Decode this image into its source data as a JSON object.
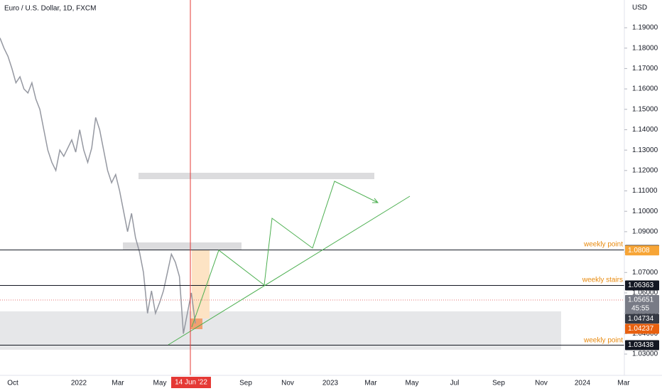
{
  "chart_data": {
    "type": "line",
    "title": "Euro / U.S. Dollar, 1D, FXCM",
    "currency": "USD",
    "color": "#9598a1",
    "values": [
      1.185,
      1.18,
      1.176,
      1.17,
      1.163,
      1.166,
      1.16,
      1.158,
      1.163,
      1.155,
      1.15,
      1.14,
      1.13,
      1.124,
      1.12,
      1.13,
      1.127,
      1.131,
      1.135,
      1.129,
      1.14,
      1.13,
      1.124,
      1.131,
      1.146,
      1.14,
      1.13,
      1.12,
      1.114,
      1.118,
      1.11,
      1.1,
      1.09,
      1.099,
      1.087,
      1.08,
      1.07,
      1.05,
      1.061,
      1.05,
      1.055,
      1.061,
      1.07,
      1.079,
      1.075,
      1.068,
      1.04,
      1.05,
      1.06,
      1.045
    ],
    "ylim": [
      1.0206,
      1.2036
    ],
    "yticks": [
      {
        "value": 1.03,
        "label": "1.03000"
      },
      {
        "value": 1.04,
        "label": "1.04000"
      },
      {
        "value": 1.05,
        "label": "1.05000"
      },
      {
        "value": 1.06,
        "label": "1.06000"
      },
      {
        "value": 1.07,
        "label": "1.07000"
      },
      {
        "value": 1.08,
        "label": "1.08000"
      },
      {
        "value": 1.09,
        "label": "1.09000"
      },
      {
        "value": 1.1,
        "label": "1.10000"
      },
      {
        "value": 1.11,
        "label": "1.11000"
      },
      {
        "value": 1.12,
        "label": "1.12000"
      },
      {
        "value": 1.13,
        "label": "1.13000"
      },
      {
        "value": 1.14,
        "label": "1.14000"
      },
      {
        "value": 1.15,
        "label": "1.15000"
      },
      {
        "value": 1.16,
        "label": "1.16000"
      },
      {
        "value": 1.17,
        "label": "1.17000"
      },
      {
        "value": 1.18,
        "label": "1.18000"
      },
      {
        "value": 1.19,
        "label": "1.19000"
      }
    ],
    "x_labels": [
      "Oct",
      "2022",
      "Mar",
      "May",
      "Sep",
      "Nov",
      "2023",
      "Mar",
      "May",
      "Jul",
      "Sep",
      "Nov",
      "2024",
      "Mar"
    ],
    "crosshair_label": "14 Jun '22",
    "levels": [
      {
        "value": 1.08102,
        "color": "#131722",
        "line": true
      },
      {
        "value": 1.0808,
        "color": "#f7a536",
        "line": false
      },
      {
        "value": 1.06363,
        "color": "#131722",
        "line": true
      },
      {
        "value": 1.05651,
        "color": "#787b86",
        "line": false,
        "countdown": "45:55"
      },
      {
        "value": 1.04734,
        "color": "#363a45",
        "line": false
      },
      {
        "value": 1.04237,
        "color": "#e8600f",
        "line": false
      },
      {
        "value": 1.03438,
        "color": "#131722",
        "line": true
      }
    ],
    "annotations": [
      "weekly point",
      "weekly stairs",
      "weekly point"
    ]
  }
}
